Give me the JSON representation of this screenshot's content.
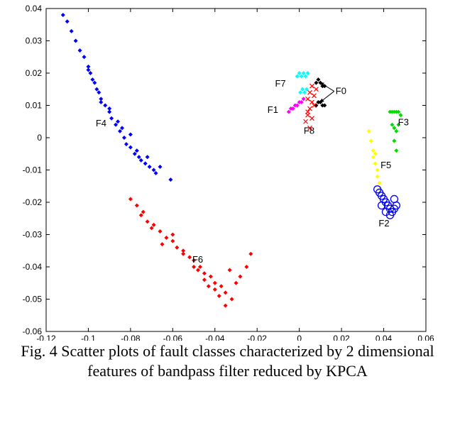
{
  "caption": "Fig. 4 Scatter plots of fault classes characterized by 2 dimensional features of bandpass filter reduced by KPCA",
  "chart_data": {
    "type": "scatter",
    "xlim": [
      -0.12,
      0.06
    ],
    "ylim": [
      -0.06,
      0.04
    ],
    "xticks": [
      -0.12,
      -0.1,
      -0.08,
      -0.06,
      -0.04,
      -0.02,
      0,
      0.02,
      0.04,
      0.06
    ],
    "xtick_labels": [
      "-0.12",
      "-0.1",
      "-0.08",
      "-0.06",
      "-0.04",
      "-0.02",
      "0",
      "0.02",
      "0.04",
      "0.06"
    ],
    "yticks": [
      -0.06,
      -0.05,
      -0.04,
      -0.03,
      -0.02,
      -0.01,
      0,
      0.01,
      0.02,
      0.03,
      0.04
    ],
    "ytick_labels": [
      "-0.06",
      "-0.05",
      "-0.04",
      "-0.03",
      "-0.02",
      "-0.01",
      "0",
      "0.01",
      "0.02",
      "0.03",
      "0.04"
    ],
    "grid": false,
    "series": [
      {
        "name": "F4",
        "color": "#0000ff",
        "marker": "dot",
        "x": [
          -0.112,
          -0.11,
          -0.108,
          -0.106,
          -0.104,
          -0.102,
          -0.1,
          -0.099,
          -0.097,
          -0.095,
          -0.094,
          -0.092,
          -0.09,
          -0.089,
          -0.087,
          -0.085,
          -0.083,
          -0.082,
          -0.08,
          -0.078,
          -0.076,
          -0.075,
          -0.073,
          -0.071,
          -0.069,
          -0.068,
          -0.066,
          -0.1,
          -0.098,
          -0.096,
          -0.094,
          -0.09,
          -0.086,
          -0.084,
          -0.08,
          -0.077,
          -0.072,
          -0.061
        ],
        "y": [
          0.038,
          0.036,
          0.033,
          0.03,
          0.027,
          0.025,
          0.022,
          0.02,
          0.017,
          0.014,
          0.012,
          0.01,
          0.008,
          0.006,
          0.004,
          0.002,
          0.0,
          -0.002,
          -0.003,
          -0.005,
          -0.006,
          -0.007,
          -0.008,
          -0.009,
          -0.01,
          -0.011,
          -0.009,
          0.021,
          0.018,
          0.015,
          0.011,
          0.009,
          0.005,
          0.003,
          0.001,
          -0.004,
          -0.006,
          -0.013
        ]
      },
      {
        "name": "F6",
        "color": "#ff0000",
        "marker": "dot",
        "x": [
          -0.08,
          -0.077,
          -0.074,
          -0.072,
          -0.069,
          -0.066,
          -0.063,
          -0.06,
          -0.058,
          -0.055,
          -0.052,
          -0.05,
          -0.047,
          -0.045,
          -0.042,
          -0.04,
          -0.037,
          -0.035,
          -0.032,
          -0.03,
          -0.028,
          -0.025,
          -0.023,
          -0.075,
          -0.07,
          -0.065,
          -0.06,
          -0.055,
          -0.05,
          -0.045,
          -0.04,
          -0.035,
          -0.033,
          -0.038,
          -0.043,
          -0.048
        ],
        "y": [
          -0.019,
          -0.021,
          -0.023,
          -0.026,
          -0.027,
          -0.029,
          -0.031,
          -0.032,
          -0.034,
          -0.035,
          -0.037,
          -0.038,
          -0.04,
          -0.042,
          -0.043,
          -0.045,
          -0.046,
          -0.048,
          -0.05,
          -0.045,
          -0.043,
          -0.04,
          -0.036,
          -0.024,
          -0.028,
          -0.033,
          -0.03,
          -0.036,
          -0.04,
          -0.044,
          -0.047,
          -0.052,
          -0.041,
          -0.049,
          -0.046,
          -0.041
        ]
      },
      {
        "name": "F7",
        "color": "#00ffff",
        "marker": "dot",
        "x": [
          -0.001,
          0.0,
          0.001,
          0.002,
          0.003,
          0.004,
          0.0005,
          0.0015,
          0.0025,
          0.0035
        ],
        "y": [
          0.019,
          0.02,
          0.019,
          0.02,
          0.019,
          0.02,
          0.014,
          0.015,
          0.014,
          0.015
        ]
      },
      {
        "name": "F1",
        "color": "#ff00ff",
        "marker": "dot",
        "x": [
          -0.005,
          -0.004,
          -0.003,
          -0.002,
          -0.001,
          0.0,
          0.001,
          0.002
        ],
        "y": [
          0.008,
          0.009,
          0.009,
          0.01,
          0.01,
          0.011,
          0.011,
          0.012
        ]
      },
      {
        "name": "F0",
        "color": "#000000",
        "marker": "dot",
        "x": [
          0.008,
          0.009,
          0.01,
          0.011,
          0.012,
          0.008,
          0.009,
          0.01,
          0.011,
          0.012
        ],
        "y": [
          0.017,
          0.018,
          0.017,
          0.016,
          0.016,
          0.01,
          0.011,
          0.011,
          0.01,
          0.01
        ]
      },
      {
        "name": "F8",
        "color": "#ff0000",
        "marker": "x",
        "x": [
          0.003,
          0.004,
          0.005,
          0.006,
          0.007,
          0.004,
          0.005,
          0.006,
          0.007,
          0.005,
          0.006,
          0.004,
          0.008
        ],
        "y": [
          0.005,
          0.007,
          0.009,
          0.011,
          0.013,
          0.012,
          0.014,
          0.016,
          0.01,
          0.003,
          0.006,
          0.008,
          0.015
        ]
      },
      {
        "name": "F3",
        "color": "#00dd00",
        "marker": "dot",
        "x": [
          0.043,
          0.044,
          0.045,
          0.046,
          0.047,
          0.048,
          0.044,
          0.045,
          0.046,
          0.047,
          0.045,
          0.046
        ],
        "y": [
          0.008,
          0.008,
          0.008,
          0.008,
          0.008,
          0.007,
          0.004,
          0.003,
          0.002,
          0.004,
          -0.001,
          -0.004
        ]
      },
      {
        "name": "F5",
        "color": "#ffff00",
        "marker": "dot",
        "x": [
          0.033,
          0.034,
          0.035,
          0.035,
          0.036,
          0.037,
          0.037,
          0.038,
          0.038,
          0.036
        ],
        "y": [
          0.002,
          -0.001,
          -0.004,
          -0.006,
          -0.008,
          -0.01,
          -0.012,
          -0.014,
          -0.016,
          -0.005
        ]
      },
      {
        "name": "F2",
        "color": "#0000ff",
        "marker": "circle",
        "x": [
          0.037,
          0.038,
          0.039,
          0.04,
          0.041,
          0.042,
          0.043,
          0.044,
          0.045,
          0.046,
          0.039,
          0.041,
          0.043,
          0.045
        ],
        "y": [
          -0.016,
          -0.017,
          -0.018,
          -0.019,
          -0.02,
          -0.021,
          -0.022,
          -0.023,
          -0.022,
          -0.021,
          -0.021,
          -0.023,
          -0.024,
          -0.019
        ]
      }
    ],
    "annotations": [
      {
        "text": "F4",
        "x": -0.0965,
        "y": 0.0035
      },
      {
        "text": "F6",
        "x": -0.0507,
        "y": -0.0387
      },
      {
        "text": "F7",
        "x": -0.0115,
        "y": 0.0158
      },
      {
        "text": "F1",
        "x": -0.0151,
        "y": 0.0077
      },
      {
        "text": "F0",
        "x": 0.0172,
        "y": 0.0135
      },
      {
        "text": "F8",
        "x": 0.0021,
        "y": 0.0012
      },
      {
        "text": "F3",
        "x": 0.0468,
        "y": 0.0039
      },
      {
        "text": "F5",
        "x": 0.0385,
        "y": -0.0095
      },
      {
        "text": "F2",
        "x": 0.0376,
        "y": -0.0275
      }
    ]
  }
}
